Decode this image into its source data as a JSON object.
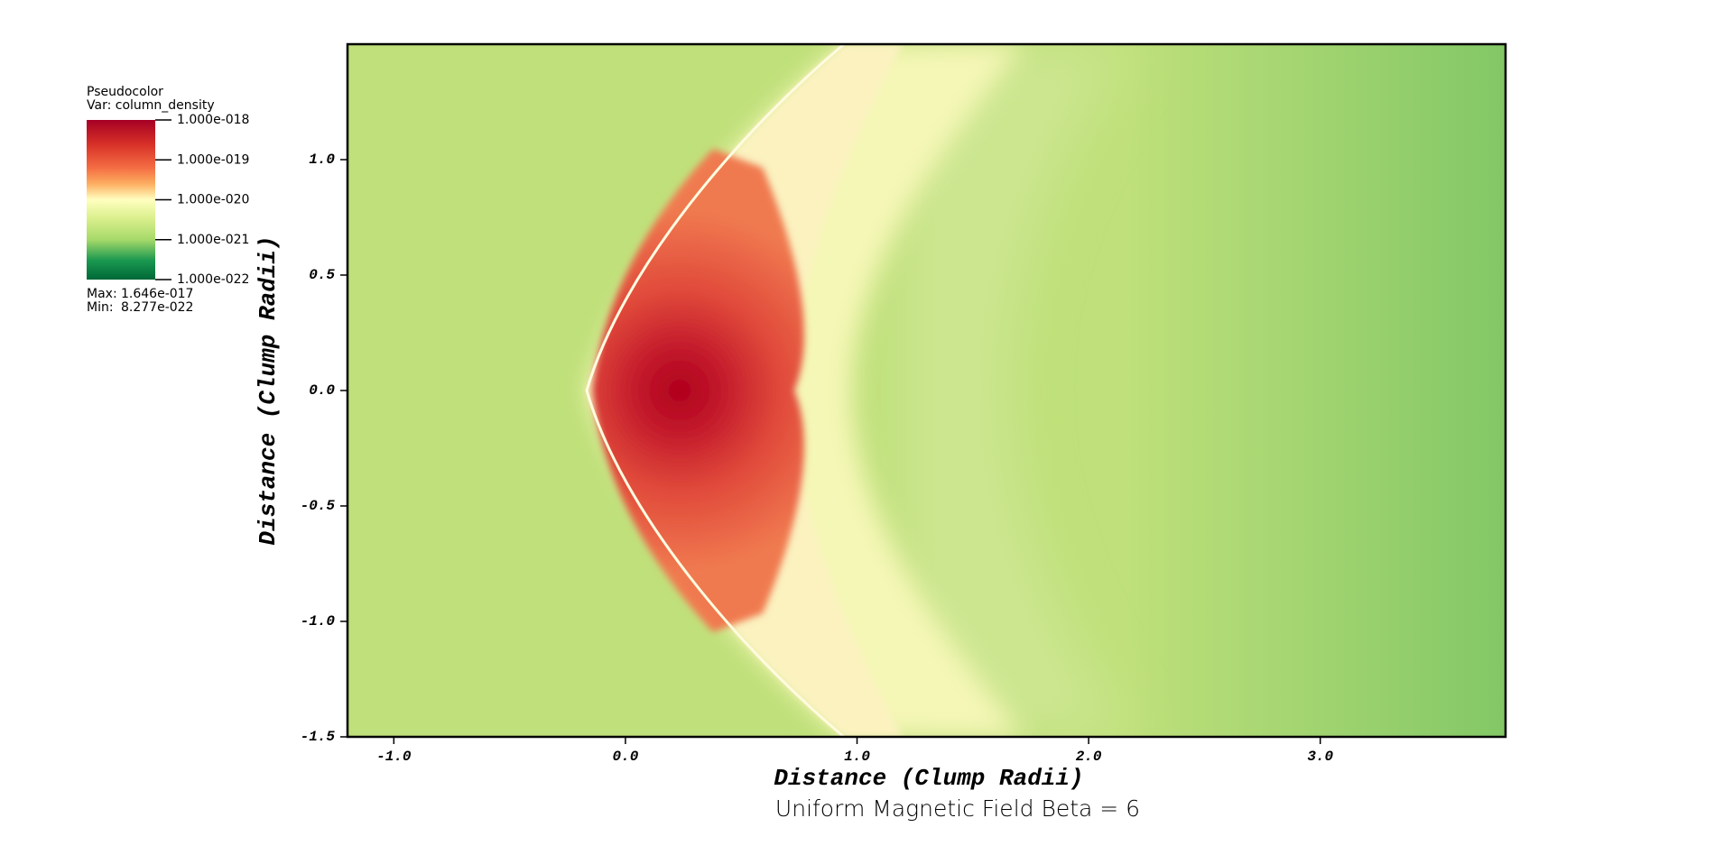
{
  "chart_data": {
    "type": "pseudocolor",
    "title": "Uniform Magnetic Field Beta = 6",
    "xlabel": "Distance (Clump Radii)",
    "ylabel": "Distance (Clump Radii)",
    "xlim": [
      -1.2,
      3.8
    ],
    "ylim": [
      -1.5,
      1.5
    ],
    "xticks": [
      {
        "value": -1,
        "label": "-1.0"
      },
      {
        "value": 0,
        "label": "0.0"
      },
      {
        "value": 1,
        "label": "1.0"
      },
      {
        "value": 2,
        "label": "2.0"
      },
      {
        "value": 3,
        "label": "3.0"
      }
    ],
    "yticks": [
      -1.5,
      {
        "value": -1,
        "label": "-1.0"
      },
      -0.5,
      {
        "value": 0,
        "label": "0.0"
      },
      0.5,
      {
        "value": 1,
        "label": "1.0"
      }
    ],
    "grid": false,
    "legend": {
      "plot": "Pseudocolor",
      "variable": "Var: column_density",
      "log_scale": true,
      "clim": [
        1e-22,
        1e-18
      ],
      "ticks": [
        {
          "value": 1e-18,
          "label": "1.000e-018"
        },
        {
          "value": 1e-19,
          "label": "1.000e-019"
        },
        {
          "value": 1e-20,
          "label": "1.000e-020"
        },
        {
          "value": 1e-21,
          "label": "1.000e-021"
        },
        {
          "value": 1e-22,
          "label": "1.000e-022"
        }
      ],
      "max_label": "Max:",
      "max": {
        "value": 1.646e-17,
        "label": "1.646e-017"
      },
      "min_label": "Min:",
      "min": {
        "value": 8.277e-22,
        "label": "8.277e-022"
      }
    }
  }
}
